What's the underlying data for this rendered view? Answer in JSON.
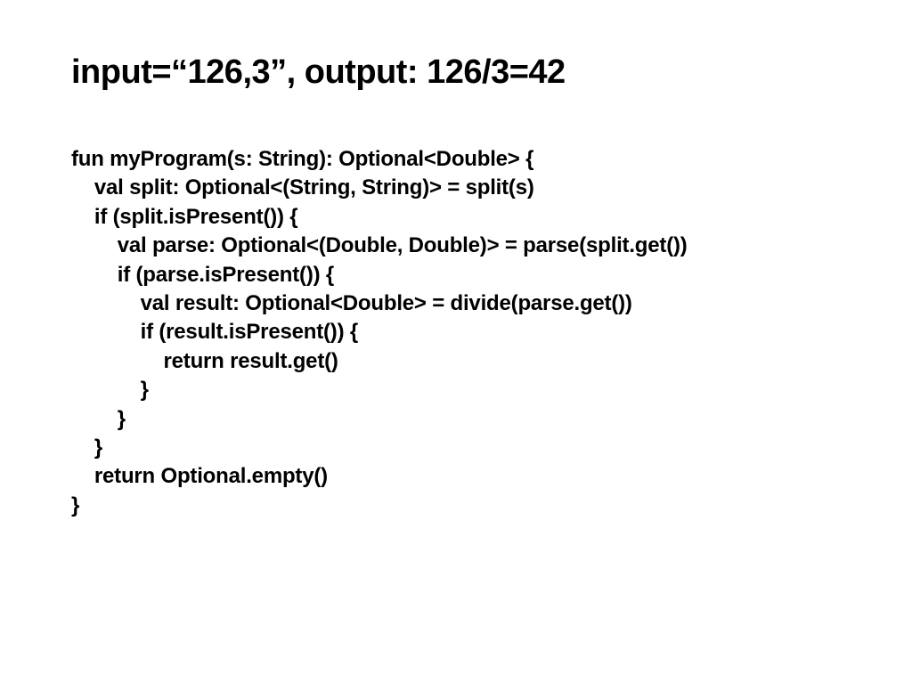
{
  "slide": {
    "title": "input=“126,3”, output: 126/3=42",
    "title_fontsize": 38,
    "title_fontweight": 700,
    "code_fontsize": 24,
    "code_fontweight": 700,
    "background_color": "#ffffff",
    "text_color": "#000000",
    "code_lines": [
      "fun myProgram(s: String): Optional<Double> {",
      "    val split: Optional<(String, String)> = split(s)",
      "    if (split.isPresent()) {",
      "        val parse: Optional<(Double, Double)> = parse(split.get())",
      "        if (parse.isPresent()) {",
      "            val result: Optional<Double> = divide(parse.get())",
      "            if (result.isPresent()) {",
      "                return result.get()",
      "            }",
      "        }",
      "    }",
      "    return Optional.empty()",
      "}"
    ]
  }
}
